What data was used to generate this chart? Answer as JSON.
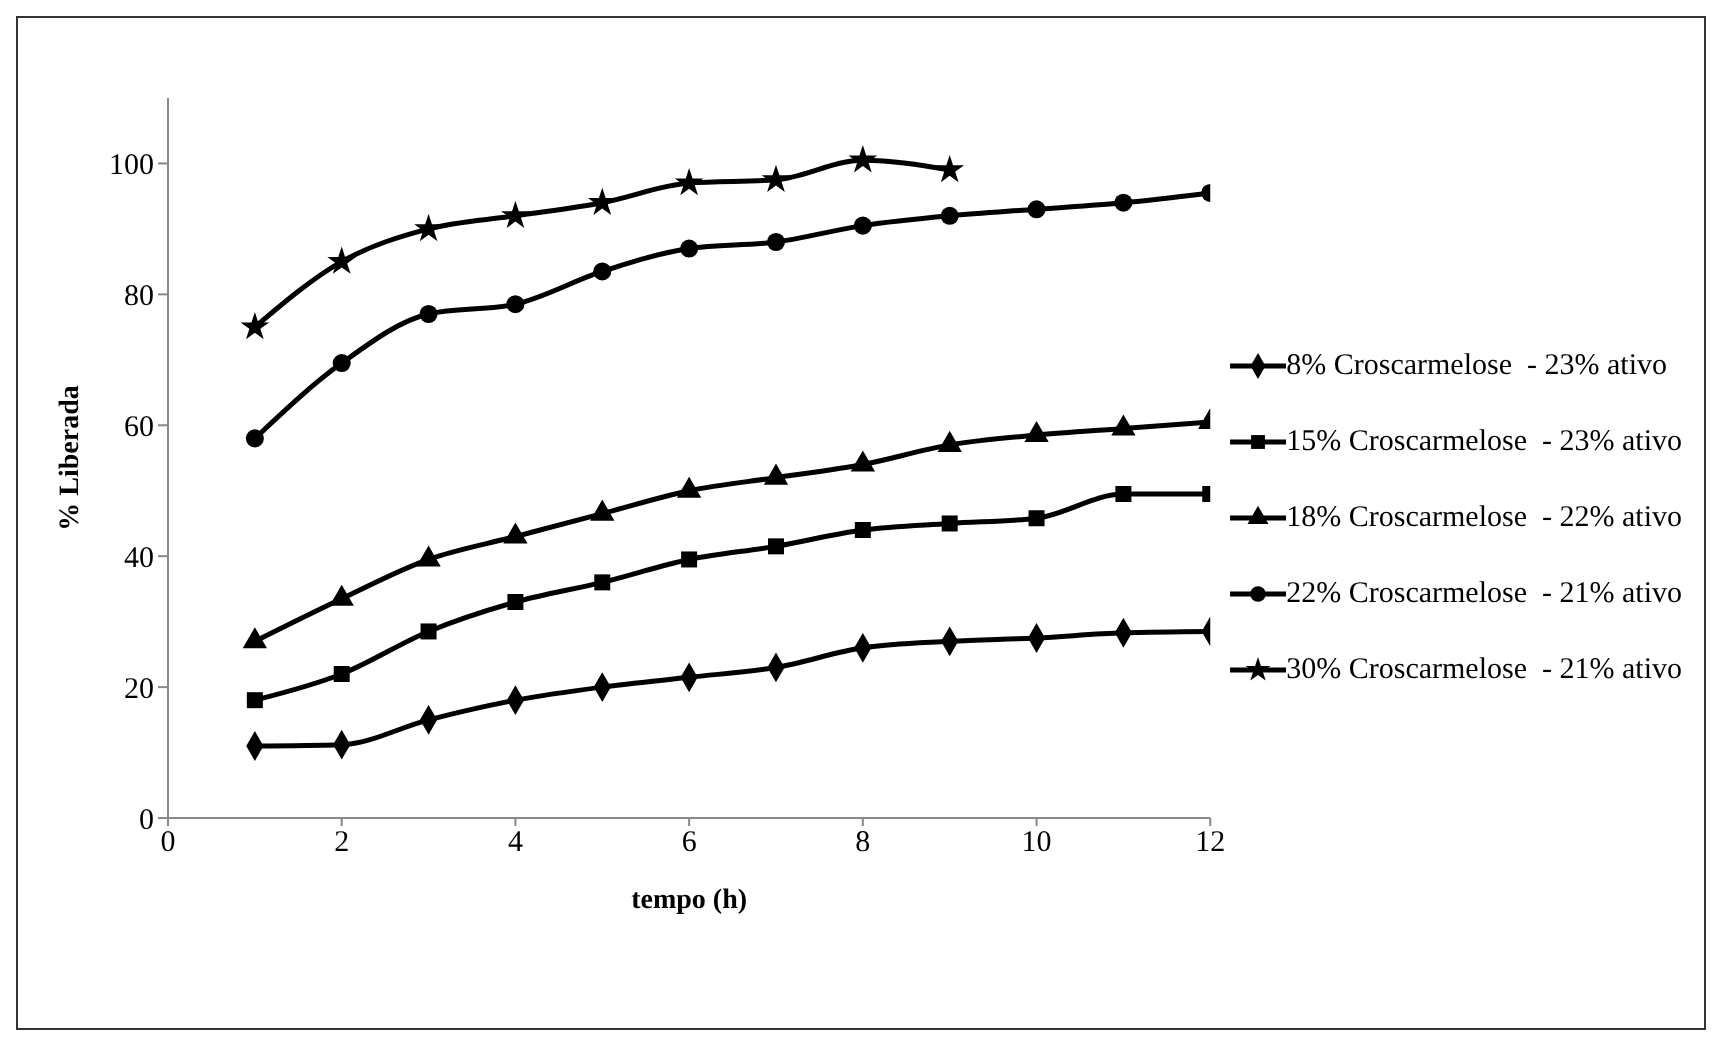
{
  "chart_data": {
    "type": "line",
    "xlabel": "tempo (h)",
    "ylabel": "% Liberada",
    "x": [
      1,
      2,
      3,
      4,
      5,
      6,
      7,
      8,
      9,
      10,
      11,
      12
    ],
    "xlim": [
      0,
      12
    ],
    "xticks": [
      0,
      2,
      4,
      6,
      8,
      10,
      12
    ],
    "ylim": [
      0,
      110
    ],
    "yticks": [
      0,
      20,
      40,
      60,
      80,
      100
    ],
    "grid": false,
    "legend": "right",
    "line_style": "solid",
    "series": [
      {
        "name": "8% Croscarmelose  - 23% ativo",
        "color": "#000000",
        "marker": "diamond",
        "values": [
          11,
          11.2,
          15,
          18,
          20,
          21.5,
          23,
          26,
          27,
          27.5,
          28.3,
          28.5
        ]
      },
      {
        "name": "15% Croscarmelose  - 23% ativo",
        "color": "#000000",
        "marker": "square",
        "values": [
          18,
          22,
          28.5,
          33,
          36,
          39.5,
          41.5,
          44,
          45,
          45.8,
          49.5,
          49.5
        ]
      },
      {
        "name": "18% Croscarmelose  - 22% ativo",
        "color": "#000000",
        "marker": "triangle",
        "values": [
          27,
          33.5,
          39.5,
          43,
          46.5,
          50,
          52,
          54,
          57,
          58.5,
          59.5,
          60.5
        ]
      },
      {
        "name": "22% Croscarmelose  - 21% ativo",
        "color": "#000000",
        "marker": "circle",
        "values": [
          58,
          69.5,
          77,
          78.5,
          83.5,
          87,
          88,
          90.5,
          92,
          93,
          94,
          95.5
        ]
      },
      {
        "name": "30% Croscarmelose  - 21% ativo",
        "color": "#000000",
        "marker": "star",
        "values": [
          75,
          85,
          90,
          92,
          94,
          97,
          97.5,
          100.5,
          99,
          null,
          null,
          null
        ]
      }
    ]
  }
}
